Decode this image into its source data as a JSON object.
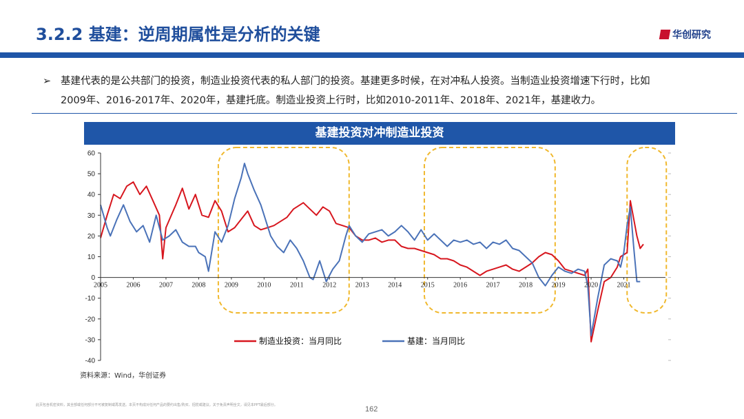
{
  "header": {
    "title": "3.2.2 基建：逆周期属性是分析的关键",
    "logo_text": "华创研究"
  },
  "bullet": {
    "marker": "➢",
    "text": "基建代表的是公共部门的投资，制造业投资代表的私人部门的投资。基建更多时候，在对冲私人投资。当制造业投资增速下行时，比如2009年、2016-2017年、2020年，基建托底。制造业投资上行时，比如2010-2011年、2018年、2021年，基建收力。"
  },
  "chart_data": {
    "type": "line",
    "title": "基建投资对冲制造业投资",
    "y_ticks": [
      60,
      50,
      40,
      30,
      20,
      10,
      0,
      -10,
      -20,
      -30,
      -40
    ],
    "ylim": [
      -40,
      60
    ],
    "xlim": [
      2005,
      2022.4
    ],
    "x_ticks": [
      2005,
      2006,
      2007,
      2008,
      2009,
      2010,
      2011,
      2012,
      2013,
      2014,
      2015,
      2016,
      2017,
      2018,
      2019,
      2020,
      2021
    ],
    "series": [
      {
        "name": "制造业投资：当月同比",
        "color": "#d7161e",
        "points": [
          [
            2005.0,
            19
          ],
          [
            2005.2,
            30
          ],
          [
            2005.4,
            40
          ],
          [
            2005.6,
            38
          ],
          [
            2005.8,
            44
          ],
          [
            2006.0,
            46
          ],
          [
            2006.2,
            40
          ],
          [
            2006.4,
            44
          ],
          [
            2006.6,
            37
          ],
          [
            2006.8,
            30
          ],
          [
            2006.9,
            9
          ],
          [
            2007.0,
            24
          ],
          [
            2007.3,
            35
          ],
          [
            2007.5,
            43
          ],
          [
            2007.7,
            33
          ],
          [
            2007.9,
            40
          ],
          [
            2008.1,
            30
          ],
          [
            2008.3,
            29
          ],
          [
            2008.5,
            37
          ],
          [
            2008.7,
            32
          ],
          [
            2008.9,
            22
          ],
          [
            2009.1,
            24
          ],
          [
            2009.3,
            28
          ],
          [
            2009.5,
            32
          ],
          [
            2009.7,
            25
          ],
          [
            2009.9,
            23
          ],
          [
            2010.1,
            24
          ],
          [
            2010.3,
            25
          ],
          [
            2010.5,
            27
          ],
          [
            2010.7,
            29
          ],
          [
            2010.9,
            33
          ],
          [
            2011.2,
            36
          ],
          [
            2011.4,
            33
          ],
          [
            2011.6,
            30
          ],
          [
            2011.8,
            34
          ],
          [
            2012.0,
            32
          ],
          [
            2012.2,
            26
          ],
          [
            2012.4,
            25
          ],
          [
            2012.6,
            24
          ],
          [
            2012.8,
            20
          ],
          [
            2013.0,
            18
          ],
          [
            2013.2,
            18
          ],
          [
            2013.4,
            19
          ],
          [
            2013.6,
            17
          ],
          [
            2013.8,
            18
          ],
          [
            2014.0,
            18
          ],
          [
            2014.2,
            15
          ],
          [
            2014.4,
            14
          ],
          [
            2014.6,
            14
          ],
          [
            2014.8,
            13
          ],
          [
            2015.0,
            12
          ],
          [
            2015.2,
            11
          ],
          [
            2015.4,
            9
          ],
          [
            2015.6,
            9
          ],
          [
            2015.8,
            8
          ],
          [
            2016.0,
            6
          ],
          [
            2016.2,
            5
          ],
          [
            2016.4,
            3
          ],
          [
            2016.6,
            1
          ],
          [
            2016.8,
            3
          ],
          [
            2017.0,
            4
          ],
          [
            2017.2,
            5
          ],
          [
            2017.4,
            6
          ],
          [
            2017.6,
            4
          ],
          [
            2017.8,
            3
          ],
          [
            2018.0,
            5
          ],
          [
            2018.2,
            7
          ],
          [
            2018.4,
            10
          ],
          [
            2018.6,
            12
          ],
          [
            2018.8,
            11
          ],
          [
            2019.0,
            8
          ],
          [
            2019.2,
            4
          ],
          [
            2019.4,
            3
          ],
          [
            2019.6,
            2
          ],
          [
            2019.8,
            1
          ],
          [
            2019.9,
            4
          ],
          [
            2020.0,
            -31
          ],
          [
            2020.2,
            -16
          ],
          [
            2020.4,
            -2
          ],
          [
            2020.6,
            0
          ],
          [
            2020.8,
            5
          ],
          [
            2020.9,
            10
          ],
          [
            2021.1,
            12
          ],
          [
            2021.2,
            37
          ],
          [
            2021.4,
            20
          ],
          [
            2021.5,
            14
          ],
          [
            2021.6,
            16
          ]
        ]
      },
      {
        "name": "基建：当月同比",
        "color": "#4a72b8",
        "points": [
          [
            2005.0,
            35
          ],
          [
            2005.2,
            24
          ],
          [
            2005.3,
            20
          ],
          [
            2005.5,
            28
          ],
          [
            2005.7,
            35
          ],
          [
            2005.9,
            27
          ],
          [
            2006.1,
            22
          ],
          [
            2006.3,
            25
          ],
          [
            2006.5,
            17
          ],
          [
            2006.7,
            30
          ],
          [
            2006.9,
            18
          ],
          [
            2007.1,
            20
          ],
          [
            2007.3,
            23
          ],
          [
            2007.5,
            17
          ],
          [
            2007.7,
            15
          ],
          [
            2007.9,
            15
          ],
          [
            2008.0,
            12
          ],
          [
            2008.2,
            10
          ],
          [
            2008.3,
            3
          ],
          [
            2008.5,
            22
          ],
          [
            2008.7,
            17
          ],
          [
            2008.9,
            25
          ],
          [
            2009.1,
            38
          ],
          [
            2009.3,
            48
          ],
          [
            2009.4,
            55
          ],
          [
            2009.5,
            50
          ],
          [
            2009.7,
            42
          ],
          [
            2009.9,
            35
          ],
          [
            2010.0,
            30
          ],
          [
            2010.2,
            20
          ],
          [
            2010.4,
            15
          ],
          [
            2010.6,
            12
          ],
          [
            2010.8,
            18
          ],
          [
            2011.0,
            14
          ],
          [
            2011.2,
            8
          ],
          [
            2011.4,
            0
          ],
          [
            2011.5,
            -1
          ],
          [
            2011.7,
            8
          ],
          [
            2011.9,
            -2
          ],
          [
            2012.1,
            4
          ],
          [
            2012.3,
            8
          ],
          [
            2012.5,
            20
          ],
          [
            2012.6,
            25
          ],
          [
            2012.8,
            20
          ],
          [
            2013.0,
            17
          ],
          [
            2013.2,
            21
          ],
          [
            2013.4,
            22
          ],
          [
            2013.6,
            23
          ],
          [
            2013.8,
            20
          ],
          [
            2014.0,
            22
          ],
          [
            2014.2,
            25
          ],
          [
            2014.4,
            22
          ],
          [
            2014.6,
            18
          ],
          [
            2014.8,
            23
          ],
          [
            2015.0,
            18
          ],
          [
            2015.2,
            21
          ],
          [
            2015.4,
            18
          ],
          [
            2015.6,
            15
          ],
          [
            2015.8,
            18
          ],
          [
            2016.0,
            17
          ],
          [
            2016.2,
            18
          ],
          [
            2016.4,
            16
          ],
          [
            2016.6,
            17
          ],
          [
            2016.8,
            14
          ],
          [
            2017.0,
            17
          ],
          [
            2017.2,
            16
          ],
          [
            2017.4,
            18
          ],
          [
            2017.6,
            14
          ],
          [
            2017.8,
            13
          ],
          [
            2018.0,
            10
          ],
          [
            2018.2,
            7
          ],
          [
            2018.4,
            0
          ],
          [
            2018.6,
            -4
          ],
          [
            2018.8,
            1
          ],
          [
            2019.0,
            5
          ],
          [
            2019.2,
            3
          ],
          [
            2019.4,
            2
          ],
          [
            2019.6,
            4
          ],
          [
            2019.8,
            3
          ],
          [
            2019.9,
            -4
          ],
          [
            2020.0,
            -28
          ],
          [
            2020.2,
            -10
          ],
          [
            2020.4,
            6
          ],
          [
            2020.6,
            9
          ],
          [
            2020.8,
            8
          ],
          [
            2020.9,
            5
          ],
          [
            2021.0,
            12
          ],
          [
            2021.1,
            25
          ],
          [
            2021.2,
            34
          ],
          [
            2021.3,
            15
          ],
          [
            2021.4,
            -2
          ],
          [
            2021.5,
            -2
          ]
        ]
      }
    ],
    "legend": [
      "制造业投资：当月同比",
      "基建：当月同比"
    ],
    "highlight_ranges": [
      [
        2008.6,
        2012.6
      ],
      [
        2014.9,
        2018.9
      ],
      [
        2021.1,
        2022.3
      ]
    ],
    "highlight_color": "#f0b82d",
    "source_note": "资料来源：Wind，华创证券"
  },
  "footer": {
    "page_number": "162",
    "disclaimer": "此页包含机密资料，其全部或任何部分不可被复制或再发送。本页不构成对任何产品的要约出售/购买、招揽或建议。关于免责声明全文，请见本PPT最后部分。"
  }
}
